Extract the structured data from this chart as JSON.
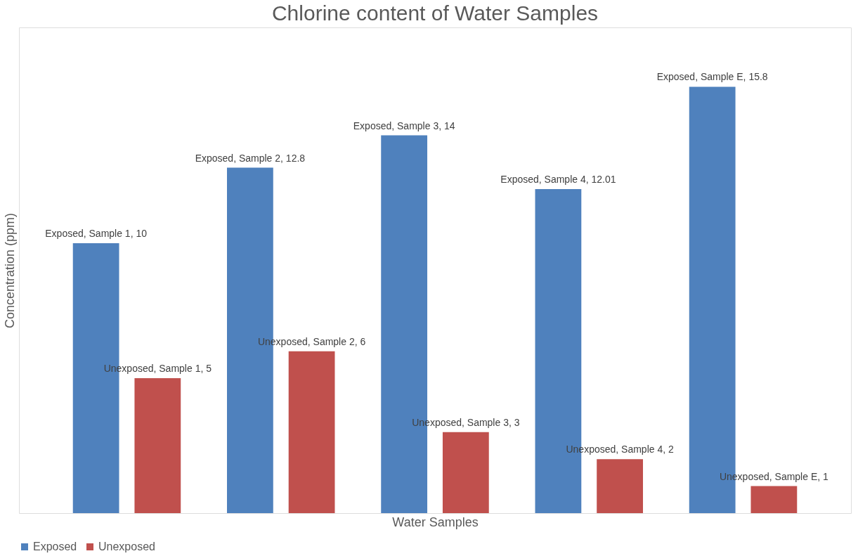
{
  "chart_data": {
    "type": "bar",
    "title": "Chlorine content of Water Samples",
    "xlabel": "Water Samples",
    "ylabel": "Concentration (ppm)",
    "categories": [
      null,
      null,
      null,
      null,
      null
    ],
    "series": [
      {
        "name": "Exposed",
        "color": "#4f81bd",
        "values": [
          10,
          12.8,
          14,
          12.01,
          15.8
        ],
        "value_labels": [
          "Exposed, Sample 1, 10",
          "Exposed, Sample 2, 12.8",
          "Exposed, Sample 3, 14",
          "Exposed, Sample 4, 12.01",
          "Exposed, Sample E, 15.8"
        ]
      },
      {
        "name": "Unexposed",
        "color": "#c0504d",
        "values": [
          5,
          6,
          3,
          2,
          1
        ],
        "value_labels": [
          "Unexposed, Sample 1, 5",
          "Unexposed, Sample 2, 6",
          "Unexposed, Sample 3, 3",
          "Unexposed, Sample 4, 2",
          "Unexposed, Sample E, 1"
        ]
      }
    ],
    "ylim": [
      0,
      18
    ],
    "grid": false,
    "legend": "bottom",
    "tick_labels": false
  }
}
